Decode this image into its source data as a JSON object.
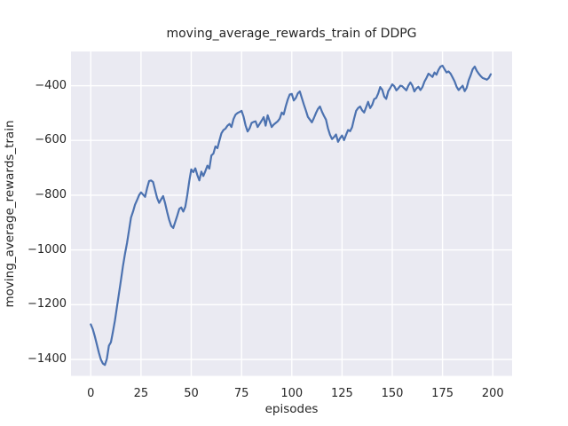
{
  "figure": {
    "background": "#ffffff"
  },
  "chart_data": {
    "type": "line",
    "title": "moving_average_rewards_train of DDPG",
    "xlabel": "episodes",
    "ylabel": "moving_average_rewards_train",
    "style": "seaborn-darkgrid",
    "axes_bg": "#eaeaf2",
    "grid_color": "#ffffff",
    "text_color": "#262626",
    "grid": true,
    "legend": false,
    "xlim": [
      -9.85,
      209.6
    ],
    "ylim": [
      -1460,
      -275
    ],
    "xticks": [
      0,
      25,
      50,
      75,
      100,
      125,
      150,
      175,
      200
    ],
    "xtick_labels": [
      "0",
      "25",
      "50",
      "75",
      "100",
      "125",
      "150",
      "175",
      "200"
    ],
    "yticks": [
      -1400,
      -1200,
      -1000,
      -800,
      -600,
      -400
    ],
    "ytick_labels": [
      "−1400",
      "−1200",
      "−1000",
      "−800",
      "−600",
      "−400"
    ],
    "series": [
      {
        "name": "moving_average_rewards_train",
        "color": "#4c72b0",
        "x_start": 0,
        "x_step": 1,
        "values": [
          -1272,
          -1290,
          -1315,
          -1345,
          -1375,
          -1400,
          -1415,
          -1420,
          -1398,
          -1350,
          -1337,
          -1300,
          -1258,
          -1210,
          -1160,
          -1110,
          -1060,
          -1015,
          -975,
          -930,
          -882,
          -860,
          -835,
          -818,
          -800,
          -790,
          -798,
          -806,
          -775,
          -748,
          -746,
          -752,
          -782,
          -810,
          -828,
          -815,
          -803,
          -830,
          -862,
          -890,
          -912,
          -920,
          -898,
          -875,
          -850,
          -845,
          -860,
          -842,
          -800,
          -748,
          -706,
          -716,
          -702,
          -726,
          -746,
          -714,
          -730,
          -712,
          -692,
          -703,
          -655,
          -648,
          -622,
          -628,
          -600,
          -574,
          -562,
          -557,
          -546,
          -540,
          -551,
          -522,
          -506,
          -500,
          -496,
          -492,
          -513,
          -545,
          -567,
          -556,
          -536,
          -532,
          -530,
          -551,
          -540,
          -528,
          -515,
          -546,
          -508,
          -530,
          -551,
          -542,
          -536,
          -530,
          -520,
          -498,
          -505,
          -475,
          -450,
          -432,
          -430,
          -454,
          -445,
          -428,
          -421,
          -445,
          -469,
          -490,
          -514,
          -524,
          -534,
          -518,
          -500,
          -485,
          -476,
          -495,
          -510,
          -524,
          -555,
          -579,
          -595,
          -588,
          -578,
          -605,
          -592,
          -582,
          -599,
          -580,
          -562,
          -566,
          -552,
          -520,
          -492,
          -482,
          -476,
          -490,
          -498,
          -478,
          -459,
          -482,
          -470,
          -449,
          -445,
          -428,
          -405,
          -415,
          -440,
          -448,
          -420,
          -408,
          -395,
          -402,
          -417,
          -410,
          -400,
          -402,
          -410,
          -417,
          -400,
          -388,
          -400,
          -421,
          -410,
          -404,
          -416,
          -405,
          -385,
          -372,
          -356,
          -362,
          -368,
          -352,
          -360,
          -342,
          -330,
          -327,
          -340,
          -352,
          -348,
          -356,
          -370,
          -384,
          -404,
          -416,
          -408,
          -400,
          -420,
          -408,
          -380,
          -362,
          -340,
          -330,
          -345,
          -356,
          -365,
          -372,
          -375,
          -378,
          -372,
          -358
        ]
      }
    ]
  }
}
